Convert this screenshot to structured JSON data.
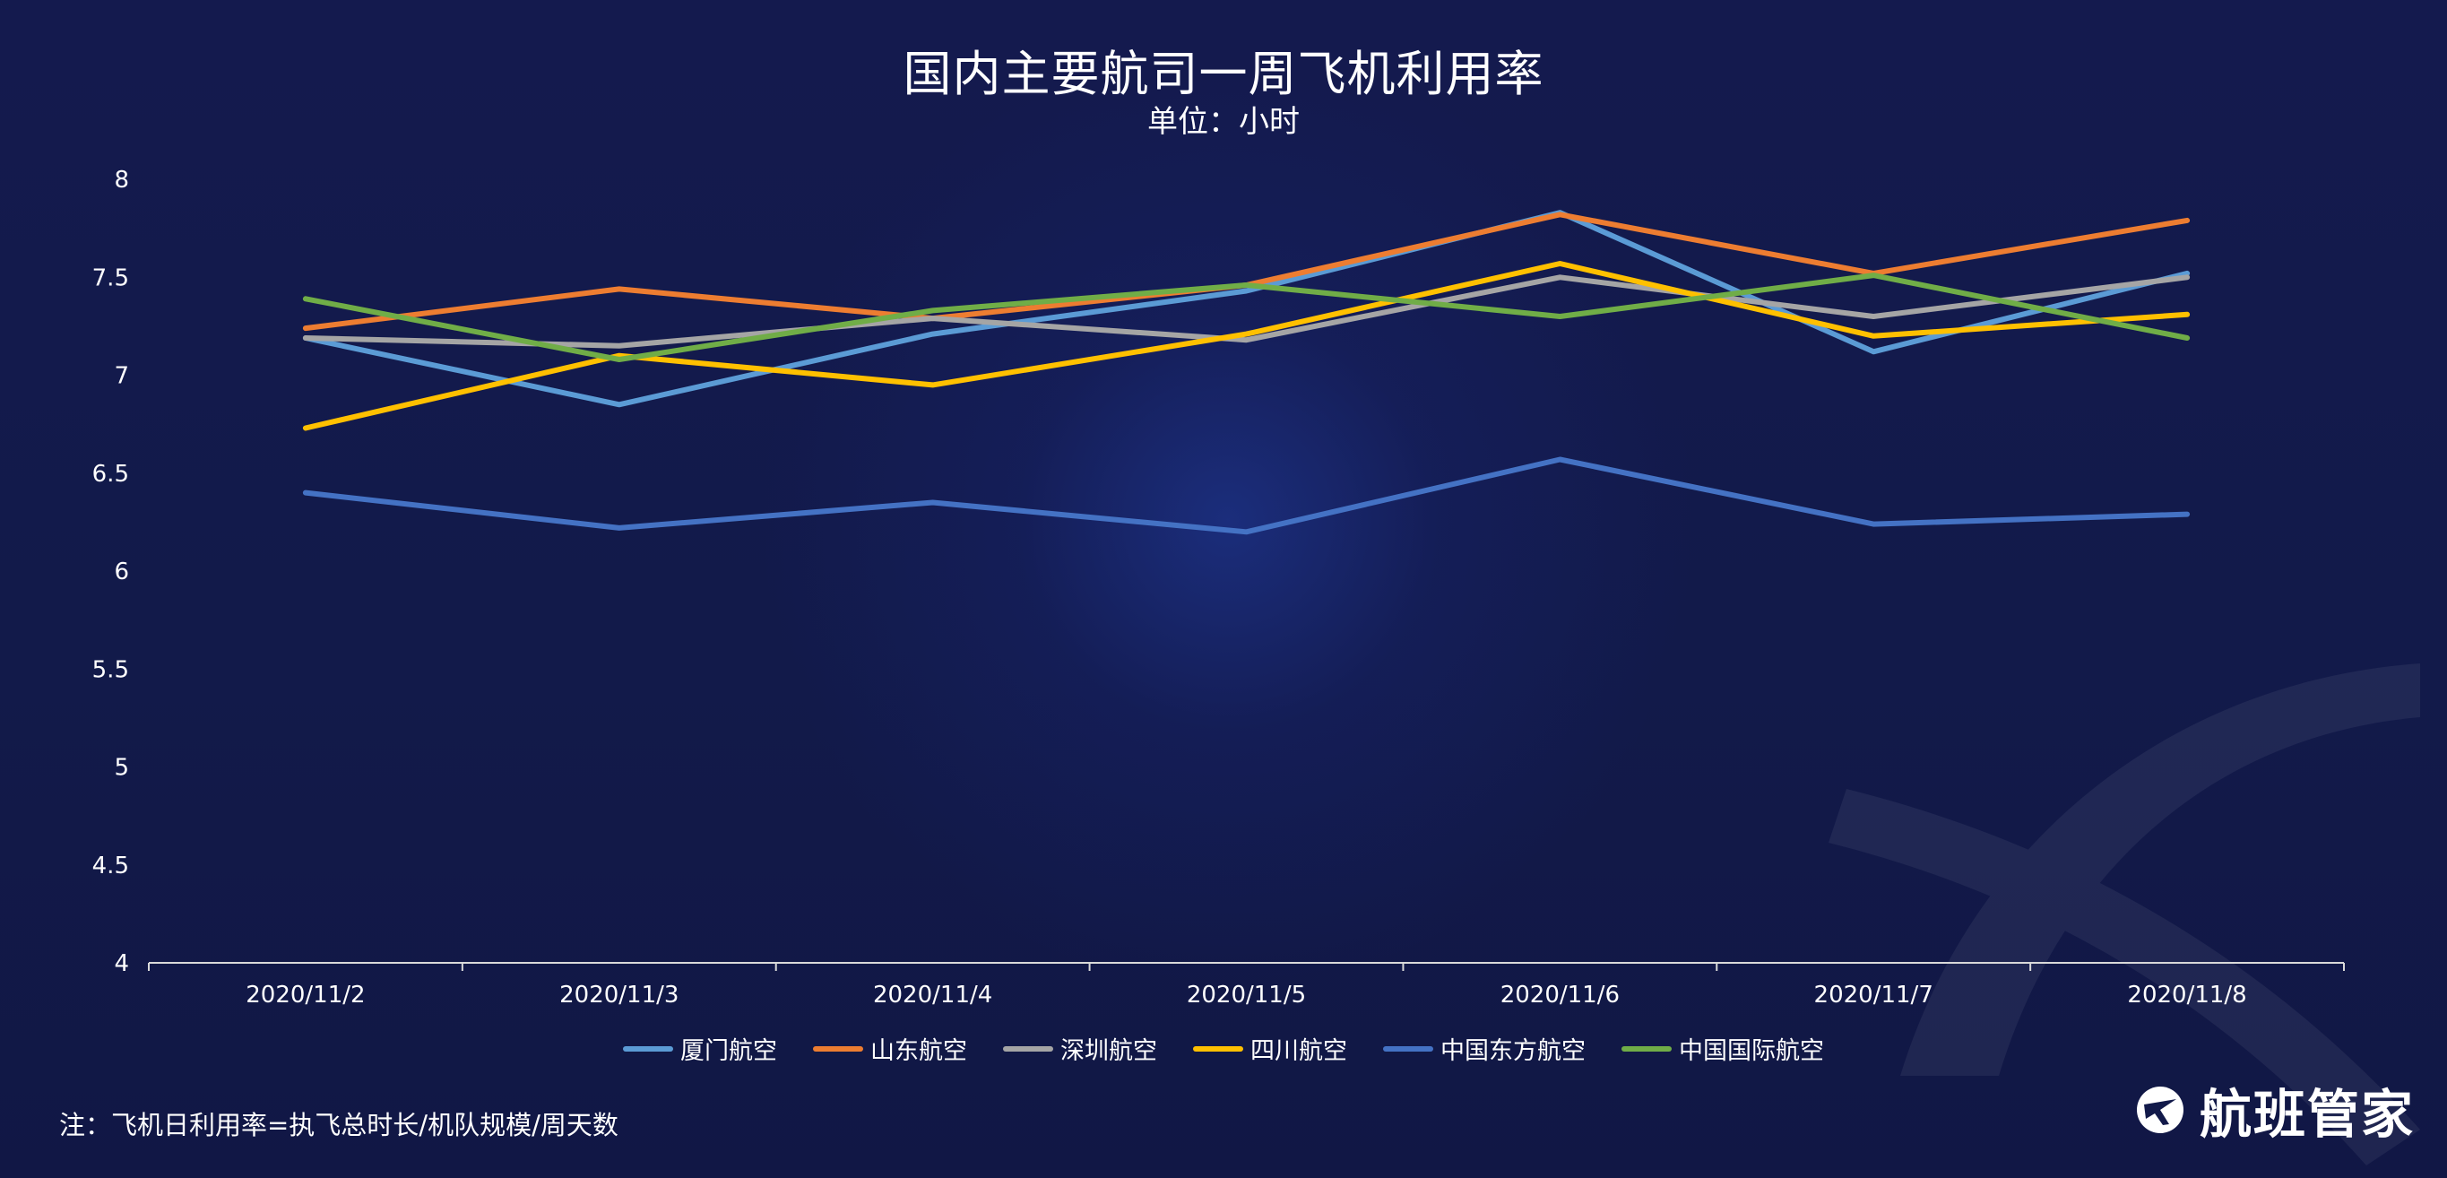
{
  "header": {
    "title": "国内主要航司一周飞机利用率",
    "subtitle": "单位：小时"
  },
  "footer": {
    "note": "注：飞机日利用率=执飞总时长/机队规模/周天数",
    "brand": "航班管家"
  },
  "chart_data": {
    "type": "line",
    "x": [
      "2020/11/2",
      "2020/11/3",
      "2020/11/4",
      "2020/11/5",
      "2020/11/6",
      "2020/11/7",
      "2020/11/8"
    ],
    "ylim": [
      4,
      8
    ],
    "yticks": [
      "4",
      "4.5",
      "5",
      "5.5",
      "6",
      "6.5",
      "7",
      "7.5",
      "8"
    ],
    "grid": false,
    "legend_position": "bottom",
    "series": [
      {
        "name": "厦门航空",
        "color": "#5b9bd5",
        "values": [
          7.19,
          6.85,
          7.21,
          7.43,
          7.83,
          7.12,
          7.52
        ]
      },
      {
        "name": "山东航空",
        "color": "#ed7d31",
        "values": [
          7.24,
          7.44,
          7.29,
          7.46,
          7.82,
          7.52,
          7.79
        ]
      },
      {
        "name": "深圳航空",
        "color": "#a5a5a5",
        "values": [
          7.19,
          7.15,
          7.29,
          7.18,
          7.5,
          7.3,
          7.5
        ]
      },
      {
        "name": "四川航空",
        "color": "#ffc000",
        "values": [
          6.73,
          7.1,
          6.95,
          7.21,
          7.57,
          7.2,
          7.31
        ]
      },
      {
        "name": "中国东方航空",
        "color": "#4472c4",
        "values": [
          6.4,
          6.22,
          6.35,
          6.2,
          6.57,
          6.24,
          6.29
        ]
      },
      {
        "name": "中国国际航空",
        "color": "#70ad47",
        "values": [
          7.39,
          7.08,
          7.33,
          7.46,
          7.3,
          7.51,
          7.19
        ]
      }
    ]
  }
}
